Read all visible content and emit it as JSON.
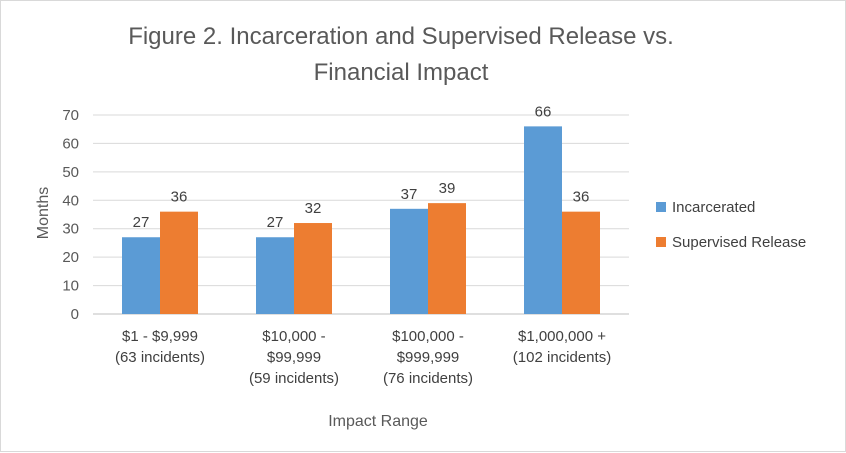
{
  "chart_data": {
    "type": "bar",
    "title_lines": [
      "Figure 2. Incarceration and Supervised Release vs.",
      "Financial Impact"
    ],
    "xlabel": "Impact Range",
    "ylabel": "Months",
    "ylim": [
      0,
      70
    ],
    "yticks": [
      0,
      10,
      20,
      30,
      40,
      50,
      60,
      70
    ],
    "grid": true,
    "legend_position": "right",
    "categories": [
      [
        "$1 - $9,999",
        "(63 incidents)"
      ],
      [
        "$10,000 -",
        "$99,999",
        "(59 incidents)"
      ],
      [
        "$100,000 -",
        "$999,999",
        "(76 incidents)"
      ],
      [
        "$1,000,000 +",
        "(102 incidents)"
      ]
    ],
    "series": [
      {
        "name": "Incarcerated",
        "color": "#5b9bd5",
        "values": [
          27,
          27,
          37,
          66
        ]
      },
      {
        "name": "Supervised Release",
        "color": "#ed7d31",
        "values": [
          36,
          32,
          39,
          36
        ]
      }
    ]
  }
}
